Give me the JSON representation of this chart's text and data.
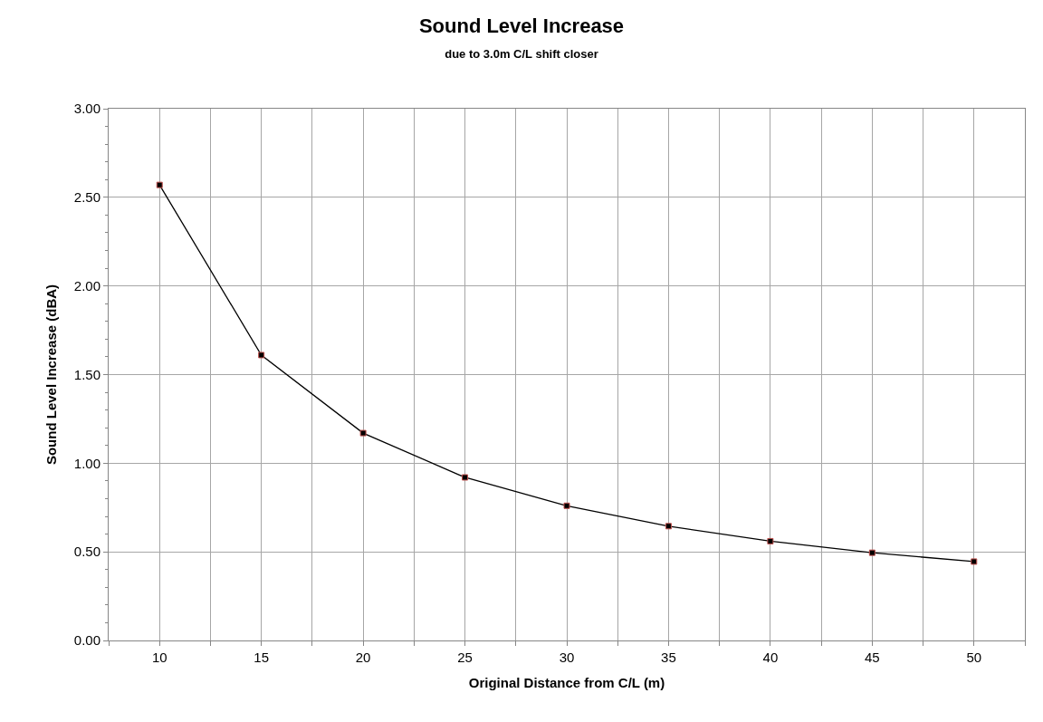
{
  "chart_data": {
    "type": "line",
    "title": "Sound Level Increase",
    "subtitle": "due to 3.0m C/L shift closer",
    "xlabel": "Original Distance from C/L (m)",
    "ylabel": "Sound Level Increase (dBA)",
    "x": [
      10,
      15,
      20,
      25,
      30,
      35,
      40,
      45,
      50
    ],
    "series": [
      {
        "color": "#000000",
        "values": [
          2.57,
          1.61,
          1.17,
          0.92,
          0.76,
          0.645,
          0.56,
          0.495,
          0.445
        ]
      }
    ],
    "xlim": [
      7.5,
      52.5
    ],
    "xticks": [
      {
        "value": 7.5,
        "label": null
      },
      10,
      {
        "value": 12.5,
        "label": null
      },
      15,
      {
        "value": 17.5,
        "label": null
      },
      20,
      {
        "value": 22.5,
        "label": null
      },
      25,
      {
        "value": 27.5,
        "label": null
      },
      30,
      {
        "value": 32.5,
        "label": null
      },
      35,
      {
        "value": 37.5,
        "label": null
      },
      40,
      {
        "value": 42.5,
        "label": null
      },
      45,
      {
        "value": 47.5,
        "label": null
      },
      50,
      {
        "value": 52.5,
        "label": null
      }
    ],
    "ylim": [
      0,
      3
    ],
    "yticks": [
      {
        "value": 0,
        "label": "0.00"
      },
      {
        "value": 0.5,
        "label": "0.50"
      },
      {
        "value": 1,
        "label": "1.00"
      },
      {
        "value": 1.5,
        "label": "1.50"
      },
      {
        "value": 2,
        "label": "2.00"
      },
      {
        "value": 2.5,
        "label": "2.50"
      },
      {
        "value": 3,
        "label": "3.00"
      }
    ],
    "grid": true,
    "marker": "square",
    "line_style": "solid"
  }
}
